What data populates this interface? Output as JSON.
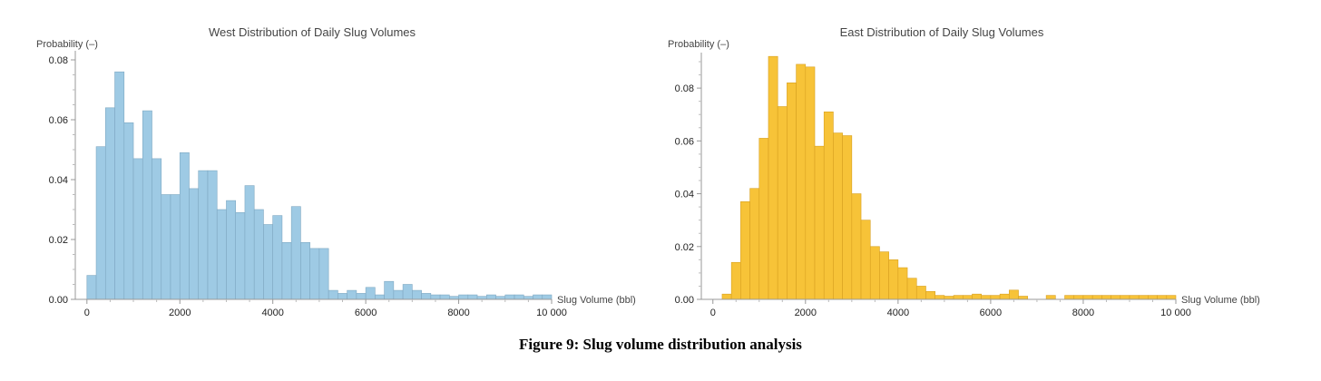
{
  "caption": "Figure 9: Slug volume distribution analysis",
  "chart_data": [
    {
      "type": "bar",
      "title": "West Distribution of Daily Slug Volumes",
      "ylabel": "Probability (–)",
      "xlabel": "Slug Volume (bbl)",
      "xlim": [
        -250,
        10000
      ],
      "ylim": [
        0,
        0.08
      ],
      "xticks": [
        0,
        2000,
        4000,
        6000,
        8000,
        10000
      ],
      "xtick_labels": [
        "0",
        "2000",
        "4000",
        "6000",
        "8000",
        "10 000"
      ],
      "yticks": [
        0,
        0.02,
        0.04,
        0.06,
        0.08
      ],
      "ytick_labels": [
        "0.00",
        "0.02",
        "0.04",
        "0.06",
        "0.08"
      ],
      "bin_width": 200,
      "bin_start": 0,
      "fill": "#9ecae4",
      "stroke": "#7fa8c2",
      "values": [
        0.008,
        0.051,
        0.064,
        0.076,
        0.059,
        0.047,
        0.063,
        0.047,
        0.035,
        0.035,
        0.049,
        0.037,
        0.043,
        0.043,
        0.03,
        0.033,
        0.029,
        0.038,
        0.03,
        0.025,
        0.028,
        0.019,
        0.031,
        0.019,
        0.017,
        0.017,
        0.003,
        0.002,
        0.003,
        0.002,
        0.004,
        0.0015,
        0.006,
        0.003,
        0.005,
        0.003,
        0.002,
        0.0015,
        0.0015,
        0.001,
        0.0015,
        0.0015,
        0.001,
        0.0015,
        0.001,
        0.0015,
        0.0015,
        0.001,
        0.0015,
        0.0015
      ]
    },
    {
      "type": "bar",
      "title": "East Distribution of Daily Slug Volumes",
      "ylabel": "Probability (–)",
      "xlabel": "Slug Volume (bbl)",
      "xlim": [
        -250,
        10000
      ],
      "ylim": [
        0,
        0.09
      ],
      "xticks": [
        0,
        2000,
        4000,
        6000,
        8000,
        10000
      ],
      "xtick_labels": [
        "0",
        "2000",
        "4000",
        "6000",
        "8000",
        "10 000"
      ],
      "yticks": [
        0,
        0.02,
        0.04,
        0.06,
        0.08
      ],
      "ytick_labels": [
        "0.00",
        "0.02",
        "0.04",
        "0.06",
        "0.08"
      ],
      "bin_width": 200,
      "bin_start": 0,
      "fill": "#f7c338",
      "stroke": "#d8a020",
      "values": [
        0,
        0.002,
        0.014,
        0.037,
        0.042,
        0.061,
        0.092,
        0.073,
        0.082,
        0.089,
        0.088,
        0.058,
        0.071,
        0.063,
        0.062,
        0.04,
        0.03,
        0.02,
        0.018,
        0.015,
        0.012,
        0.008,
        0.005,
        0.003,
        0.0015,
        0.0012,
        0.0015,
        0.0015,
        0.002,
        0.0015,
        0.0015,
        0.002,
        0.0035,
        0.0012,
        0,
        0,
        0.0015,
        0,
        0.0015,
        0.0015,
        0.0015,
        0.0015,
        0.0015,
        0.0015,
        0.0015,
        0.0015,
        0.0015,
        0.0015,
        0.0015,
        0.0015
      ]
    }
  ]
}
